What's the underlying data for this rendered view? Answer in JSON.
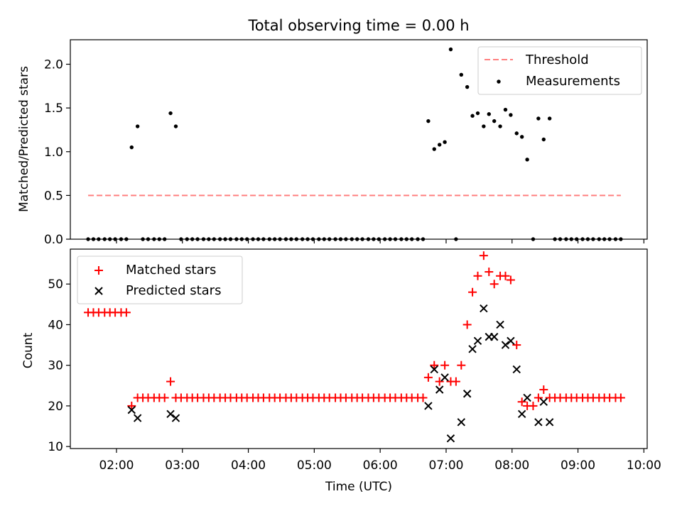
{
  "chart_data": [
    {
      "type": "scatter",
      "title": "Total observing time = 0.00 h",
      "xlabel": "",
      "ylabel": "Matched/Predicted stars",
      "xlim": [
        1.3,
        10.05
      ],
      "ylim": [
        0,
        2.28
      ],
      "yticks": [
        0.0,
        0.5,
        1.0,
        1.5,
        2.0
      ],
      "yticklabels": [
        "0.0",
        "0.5",
        "1.0",
        "1.5",
        "2.0"
      ],
      "grid": false,
      "legend_position": "top-right",
      "threshold": {
        "name": "Threshold",
        "y": 0.5,
        "x": [
          1.57,
          9.65
        ],
        "color": "#ff7f7f",
        "style": "dashed"
      },
      "series": [
        {
          "name": "Measurements",
          "marker": "dot",
          "color": "#000000",
          "points": [
            [
              1.57,
              0
            ],
            [
              1.65,
              0
            ],
            [
              1.73,
              0
            ],
            [
              1.82,
              0
            ],
            [
              1.9,
              0
            ],
            [
              1.98,
              0
            ],
            [
              2.07,
              0
            ],
            [
              2.15,
              0
            ],
            [
              2.23,
              1.05
            ],
            [
              2.32,
              1.29
            ],
            [
              2.4,
              0
            ],
            [
              2.48,
              0
            ],
            [
              2.57,
              0
            ],
            [
              2.65,
              0
            ],
            [
              2.73,
              0
            ],
            [
              2.82,
              1.44
            ],
            [
              2.9,
              1.29
            ],
            [
              2.98,
              0
            ],
            [
              3.07,
              0
            ],
            [
              3.15,
              0
            ],
            [
              3.23,
              0
            ],
            [
              3.32,
              0
            ],
            [
              3.4,
              0
            ],
            [
              3.48,
              0
            ],
            [
              3.57,
              0
            ],
            [
              3.65,
              0
            ],
            [
              3.73,
              0
            ],
            [
              3.82,
              0
            ],
            [
              3.9,
              0
            ],
            [
              3.98,
              0
            ],
            [
              4.07,
              0
            ],
            [
              4.15,
              0
            ],
            [
              4.23,
              0
            ],
            [
              4.32,
              0
            ],
            [
              4.4,
              0
            ],
            [
              4.48,
              0
            ],
            [
              4.57,
              0
            ],
            [
              4.65,
              0
            ],
            [
              4.73,
              0
            ],
            [
              4.82,
              0
            ],
            [
              4.9,
              0
            ],
            [
              4.98,
              0
            ],
            [
              5.07,
              0
            ],
            [
              5.15,
              0
            ],
            [
              5.23,
              0
            ],
            [
              5.32,
              0
            ],
            [
              5.4,
              0
            ],
            [
              5.48,
              0
            ],
            [
              5.57,
              0
            ],
            [
              5.65,
              0
            ],
            [
              5.73,
              0
            ],
            [
              5.82,
              0
            ],
            [
              5.9,
              0
            ],
            [
              5.98,
              0
            ],
            [
              6.07,
              0
            ],
            [
              6.15,
              0
            ],
            [
              6.23,
              0
            ],
            [
              6.32,
              0
            ],
            [
              6.4,
              0
            ],
            [
              6.48,
              0
            ],
            [
              6.57,
              0
            ],
            [
              6.65,
              0
            ],
            [
              6.73,
              1.35
            ],
            [
              6.82,
              1.03
            ],
            [
              6.9,
              1.08
            ],
            [
              6.98,
              1.11
            ],
            [
              7.07,
              2.17
            ],
            [
              7.15,
              0
            ],
            [
              7.23,
              1.88
            ],
            [
              7.32,
              1.74
            ],
            [
              7.4,
              1.41
            ],
            [
              7.48,
              1.44
            ],
            [
              7.57,
              1.29
            ],
            [
              7.65,
              1.43
            ],
            [
              7.73,
              1.35
            ],
            [
              7.82,
              1.29
            ],
            [
              7.9,
              1.48
            ],
            [
              7.98,
              1.42
            ],
            [
              8.07,
              1.21
            ],
            [
              8.15,
              1.17
            ],
            [
              8.23,
              0.91
            ],
            [
              8.32,
              0
            ],
            [
              8.4,
              1.38
            ],
            [
              8.48,
              1.14
            ],
            [
              8.57,
              1.38
            ],
            [
              8.65,
              0
            ],
            [
              8.73,
              0
            ],
            [
              8.82,
              0
            ],
            [
              8.9,
              0
            ],
            [
              8.98,
              0
            ],
            [
              9.07,
              0
            ],
            [
              9.15,
              0
            ],
            [
              9.23,
              0
            ],
            [
              9.32,
              0
            ],
            [
              9.4,
              0
            ],
            [
              9.48,
              0
            ],
            [
              9.57,
              0
            ],
            [
              9.65,
              0
            ]
          ]
        }
      ]
    },
    {
      "type": "scatter",
      "title": "",
      "xlabel": "Time (UTC)",
      "ylabel": "Count",
      "xlim": [
        1.3,
        10.05
      ],
      "ylim": [
        9.5,
        58.6
      ],
      "xticks": [
        2,
        3,
        4,
        5,
        6,
        7,
        8,
        9,
        10
      ],
      "xticklabels": [
        "02:00",
        "03:00",
        "04:00",
        "05:00",
        "06:00",
        "07:00",
        "08:00",
        "09:00",
        "10:00"
      ],
      "yticks": [
        10,
        20,
        30,
        40,
        50
      ],
      "yticklabels": [
        "10",
        "20",
        "30",
        "40",
        "50"
      ],
      "grid": false,
      "legend_position": "top-left",
      "series": [
        {
          "name": "Matched stars",
          "marker": "plus",
          "color": "#ff0000",
          "points": [
            [
              1.57,
              43
            ],
            [
              1.65,
              43
            ],
            [
              1.73,
              43
            ],
            [
              1.82,
              43
            ],
            [
              1.9,
              43
            ],
            [
              1.98,
              43
            ],
            [
              2.07,
              43
            ],
            [
              2.15,
              43
            ],
            [
              2.23,
              20
            ],
            [
              2.32,
              22
            ],
            [
              2.4,
              22
            ],
            [
              2.48,
              22
            ],
            [
              2.57,
              22
            ],
            [
              2.65,
              22
            ],
            [
              2.73,
              22
            ],
            [
              2.82,
              26
            ],
            [
              2.9,
              22
            ],
            [
              2.98,
              22
            ],
            [
              3.07,
              22
            ],
            [
              3.15,
              22
            ],
            [
              3.23,
              22
            ],
            [
              3.32,
              22
            ],
            [
              3.4,
              22
            ],
            [
              3.48,
              22
            ],
            [
              3.57,
              22
            ],
            [
              3.65,
              22
            ],
            [
              3.73,
              22
            ],
            [
              3.82,
              22
            ],
            [
              3.9,
              22
            ],
            [
              3.98,
              22
            ],
            [
              4.07,
              22
            ],
            [
              4.15,
              22
            ],
            [
              4.23,
              22
            ],
            [
              4.32,
              22
            ],
            [
              4.4,
              22
            ],
            [
              4.48,
              22
            ],
            [
              4.57,
              22
            ],
            [
              4.65,
              22
            ],
            [
              4.73,
              22
            ],
            [
              4.82,
              22
            ],
            [
              4.9,
              22
            ],
            [
              4.98,
              22
            ],
            [
              5.07,
              22
            ],
            [
              5.15,
              22
            ],
            [
              5.23,
              22
            ],
            [
              5.32,
              22
            ],
            [
              5.4,
              22
            ],
            [
              5.48,
              22
            ],
            [
              5.57,
              22
            ],
            [
              5.65,
              22
            ],
            [
              5.73,
              22
            ],
            [
              5.82,
              22
            ],
            [
              5.9,
              22
            ],
            [
              5.98,
              22
            ],
            [
              6.07,
              22
            ],
            [
              6.15,
              22
            ],
            [
              6.23,
              22
            ],
            [
              6.32,
              22
            ],
            [
              6.4,
              22
            ],
            [
              6.48,
              22
            ],
            [
              6.57,
              22
            ],
            [
              6.65,
              22
            ],
            [
              6.73,
              27
            ],
            [
              6.82,
              30
            ],
            [
              6.9,
              26
            ],
            [
              6.98,
              30
            ],
            [
              7.07,
              26
            ],
            [
              7.15,
              26
            ],
            [
              7.23,
              30
            ],
            [
              7.32,
              40
            ],
            [
              7.4,
              48
            ],
            [
              7.48,
              52
            ],
            [
              7.57,
              57
            ],
            [
              7.65,
              53
            ],
            [
              7.73,
              50
            ],
            [
              7.82,
              52
            ],
            [
              7.9,
              52
            ],
            [
              7.98,
              51
            ],
            [
              8.07,
              35
            ],
            [
              8.15,
              21
            ],
            [
              8.23,
              20
            ],
            [
              8.32,
              20
            ],
            [
              8.4,
              22
            ],
            [
              8.48,
              24
            ],
            [
              8.57,
              22
            ],
            [
              8.65,
              22
            ],
            [
              8.73,
              22
            ],
            [
              8.82,
              22
            ],
            [
              8.9,
              22
            ],
            [
              8.98,
              22
            ],
            [
              9.07,
              22
            ],
            [
              9.15,
              22
            ],
            [
              9.23,
              22
            ],
            [
              9.32,
              22
            ],
            [
              9.4,
              22
            ],
            [
              9.48,
              22
            ],
            [
              9.57,
              22
            ],
            [
              9.65,
              22
            ]
          ]
        },
        {
          "name": "Predicted stars",
          "marker": "x",
          "color": "#000000",
          "points": [
            [
              2.23,
              19
            ],
            [
              2.32,
              17
            ],
            [
              2.82,
              18
            ],
            [
              2.9,
              17
            ],
            [
              6.73,
              20
            ],
            [
              6.82,
              29
            ],
            [
              6.9,
              24
            ],
            [
              6.98,
              27
            ],
            [
              7.07,
              12
            ],
            [
              7.23,
              16
            ],
            [
              7.32,
              23
            ],
            [
              7.4,
              34
            ],
            [
              7.48,
              36
            ],
            [
              7.57,
              44
            ],
            [
              7.65,
              37
            ],
            [
              7.73,
              37
            ],
            [
              7.82,
              40
            ],
            [
              7.9,
              35
            ],
            [
              7.98,
              36
            ],
            [
              8.07,
              29
            ],
            [
              8.15,
              18
            ],
            [
              8.23,
              22
            ],
            [
              8.4,
              16
            ],
            [
              8.48,
              21
            ],
            [
              8.57,
              16
            ]
          ]
        }
      ]
    }
  ]
}
